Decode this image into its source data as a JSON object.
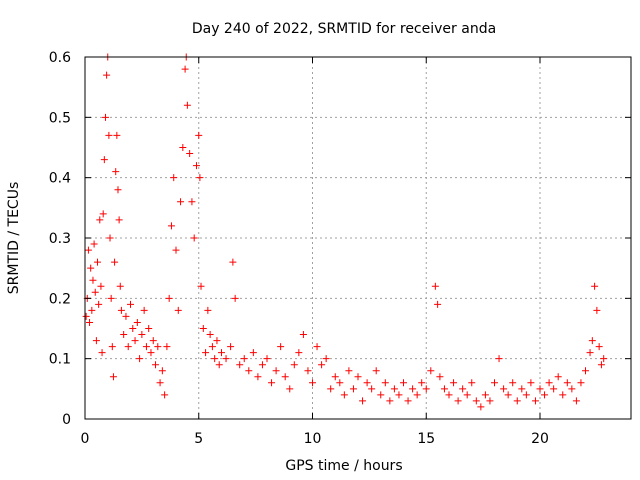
{
  "chart_data": {
    "type": "scatter",
    "title": "Day 240 of 2022, SRMTID for receiver anda",
    "xlabel": "GPS time / hours",
    "ylabel": "SRMTID / TECUs",
    "xlim": [
      0,
      24
    ],
    "ylim": [
      0,
      0.6
    ],
    "x_ticks": [
      0,
      5,
      10,
      15,
      20
    ],
    "x_tick_labels": [
      "0",
      "5",
      "10",
      "15",
      "20"
    ],
    "y_ticks": [
      0,
      0.1,
      0.2,
      0.3,
      0.4,
      0.5,
      0.6
    ],
    "y_tick_labels": [
      "0",
      "0.1",
      "0.2",
      "0.3",
      "0.4",
      "0.5",
      "0.6"
    ],
    "grid": true,
    "marker": "+",
    "color": "#ff0000",
    "series": [
      {
        "name": "SRMTID",
        "points": [
          [
            0.05,
            0.17
          ],
          [
            0.1,
            0.2
          ],
          [
            0.15,
            0.28
          ],
          [
            0.2,
            0.16
          ],
          [
            0.25,
            0.25
          ],
          [
            0.3,
            0.18
          ],
          [
            0.35,
            0.23
          ],
          [
            0.4,
            0.29
          ],
          [
            0.45,
            0.21
          ],
          [
            0.5,
            0.13
          ],
          [
            0.55,
            0.26
          ],
          [
            0.6,
            0.19
          ],
          [
            0.65,
            0.33
          ],
          [
            0.7,
            0.22
          ],
          [
            0.75,
            0.11
          ],
          [
            0.8,
            0.34
          ],
          [
            0.85,
            0.43
          ],
          [
            0.9,
            0.5
          ],
          [
            0.95,
            0.57
          ],
          [
            1.0,
            0.6
          ],
          [
            1.05,
            0.47
          ],
          [
            1.1,
            0.3
          ],
          [
            1.15,
            0.2
          ],
          [
            1.2,
            0.12
          ],
          [
            1.25,
            0.07
          ],
          [
            1.3,
            0.26
          ],
          [
            1.35,
            0.41
          ],
          [
            1.4,
            0.47
          ],
          [
            1.45,
            0.38
          ],
          [
            1.5,
            0.33
          ],
          [
            1.55,
            0.22
          ],
          [
            1.6,
            0.18
          ],
          [
            1.7,
            0.14
          ],
          [
            1.8,
            0.17
          ],
          [
            1.9,
            0.12
          ],
          [
            2.0,
            0.19
          ],
          [
            2.1,
            0.15
          ],
          [
            2.2,
            0.13
          ],
          [
            2.3,
            0.16
          ],
          [
            2.4,
            0.1
          ],
          [
            2.5,
            0.14
          ],
          [
            2.6,
            0.18
          ],
          [
            2.7,
            0.12
          ],
          [
            2.8,
            0.15
          ],
          [
            2.9,
            0.11
          ],
          [
            3.0,
            0.13
          ],
          [
            3.1,
            0.09
          ],
          [
            3.2,
            0.12
          ],
          [
            3.3,
            0.06
          ],
          [
            3.4,
            0.08
          ],
          [
            3.5,
            0.04
          ],
          [
            3.6,
            0.12
          ],
          [
            3.7,
            0.2
          ],
          [
            3.8,
            0.32
          ],
          [
            3.9,
            0.4
          ],
          [
            4.0,
            0.28
          ],
          [
            4.1,
            0.18
          ],
          [
            4.2,
            0.36
          ],
          [
            4.3,
            0.45
          ],
          [
            4.4,
            0.58
          ],
          [
            4.45,
            0.6
          ],
          [
            4.5,
            0.52
          ],
          [
            4.6,
            0.44
          ],
          [
            4.7,
            0.36
          ],
          [
            4.8,
            0.3
          ],
          [
            4.9,
            0.42
          ],
          [
            5.0,
            0.47
          ],
          [
            5.05,
            0.4
          ],
          [
            5.1,
            0.22
          ],
          [
            5.2,
            0.15
          ],
          [
            5.3,
            0.11
          ],
          [
            5.4,
            0.18
          ],
          [
            5.5,
            0.14
          ],
          [
            5.6,
            0.12
          ],
          [
            5.7,
            0.1
          ],
          [
            5.8,
            0.13
          ],
          [
            5.9,
            0.09
          ],
          [
            6.0,
            0.11
          ],
          [
            6.2,
            0.1
          ],
          [
            6.4,
            0.12
          ],
          [
            6.5,
            0.26
          ],
          [
            6.6,
            0.2
          ],
          [
            6.8,
            0.09
          ],
          [
            7.0,
            0.1
          ],
          [
            7.2,
            0.08
          ],
          [
            7.4,
            0.11
          ],
          [
            7.6,
            0.07
          ],
          [
            7.8,
            0.09
          ],
          [
            8.0,
            0.1
          ],
          [
            8.2,
            0.06
          ],
          [
            8.4,
            0.08
          ],
          [
            8.6,
            0.12
          ],
          [
            8.8,
            0.07
          ],
          [
            9.0,
            0.05
          ],
          [
            9.2,
            0.09
          ],
          [
            9.4,
            0.11
          ],
          [
            9.6,
            0.14
          ],
          [
            9.8,
            0.08
          ],
          [
            10.0,
            0.06
          ],
          [
            10.2,
            0.12
          ],
          [
            10.4,
            0.09
          ],
          [
            10.6,
            0.1
          ],
          [
            10.8,
            0.05
          ],
          [
            11.0,
            0.07
          ],
          [
            11.2,
            0.06
          ],
          [
            11.4,
            0.04
          ],
          [
            11.6,
            0.08
          ],
          [
            11.8,
            0.05
          ],
          [
            12.0,
            0.07
          ],
          [
            12.2,
            0.03
          ],
          [
            12.4,
            0.06
          ],
          [
            12.6,
            0.05
          ],
          [
            12.8,
            0.08
          ],
          [
            13.0,
            0.04
          ],
          [
            13.2,
            0.06
          ],
          [
            13.4,
            0.03
          ],
          [
            13.6,
            0.05
          ],
          [
            13.8,
            0.04
          ],
          [
            14.0,
            0.06
          ],
          [
            14.2,
            0.03
          ],
          [
            14.4,
            0.05
          ],
          [
            14.6,
            0.04
          ],
          [
            14.8,
            0.06
          ],
          [
            15.0,
            0.05
          ],
          [
            15.2,
            0.08
          ],
          [
            15.4,
            0.22
          ],
          [
            15.5,
            0.19
          ],
          [
            15.6,
            0.07
          ],
          [
            15.8,
            0.05
          ],
          [
            16.0,
            0.04
          ],
          [
            16.2,
            0.06
          ],
          [
            16.4,
            0.03
          ],
          [
            16.6,
            0.05
          ],
          [
            16.8,
            0.04
          ],
          [
            17.0,
            0.06
          ],
          [
            17.2,
            0.03
          ],
          [
            17.4,
            0.02
          ],
          [
            17.6,
            0.04
          ],
          [
            17.8,
            0.03
          ],
          [
            18.0,
            0.06
          ],
          [
            18.2,
            0.1
          ],
          [
            18.4,
            0.05
          ],
          [
            18.6,
            0.04
          ],
          [
            18.8,
            0.06
          ],
          [
            19.0,
            0.03
          ],
          [
            19.2,
            0.05
          ],
          [
            19.4,
            0.04
          ],
          [
            19.6,
            0.06
          ],
          [
            19.8,
            0.03
          ],
          [
            20.0,
            0.05
          ],
          [
            20.2,
            0.04
          ],
          [
            20.4,
            0.06
          ],
          [
            20.6,
            0.05
          ],
          [
            20.8,
            0.07
          ],
          [
            21.0,
            0.04
          ],
          [
            21.2,
            0.06
          ],
          [
            21.4,
            0.05
          ],
          [
            21.6,
            0.03
          ],
          [
            21.8,
            0.06
          ],
          [
            22.0,
            0.08
          ],
          [
            22.2,
            0.11
          ],
          [
            22.3,
            0.13
          ],
          [
            22.4,
            0.22
          ],
          [
            22.5,
            0.18
          ],
          [
            22.6,
            0.12
          ],
          [
            22.7,
            0.09
          ],
          [
            22.8,
            0.1
          ]
        ]
      }
    ]
  }
}
